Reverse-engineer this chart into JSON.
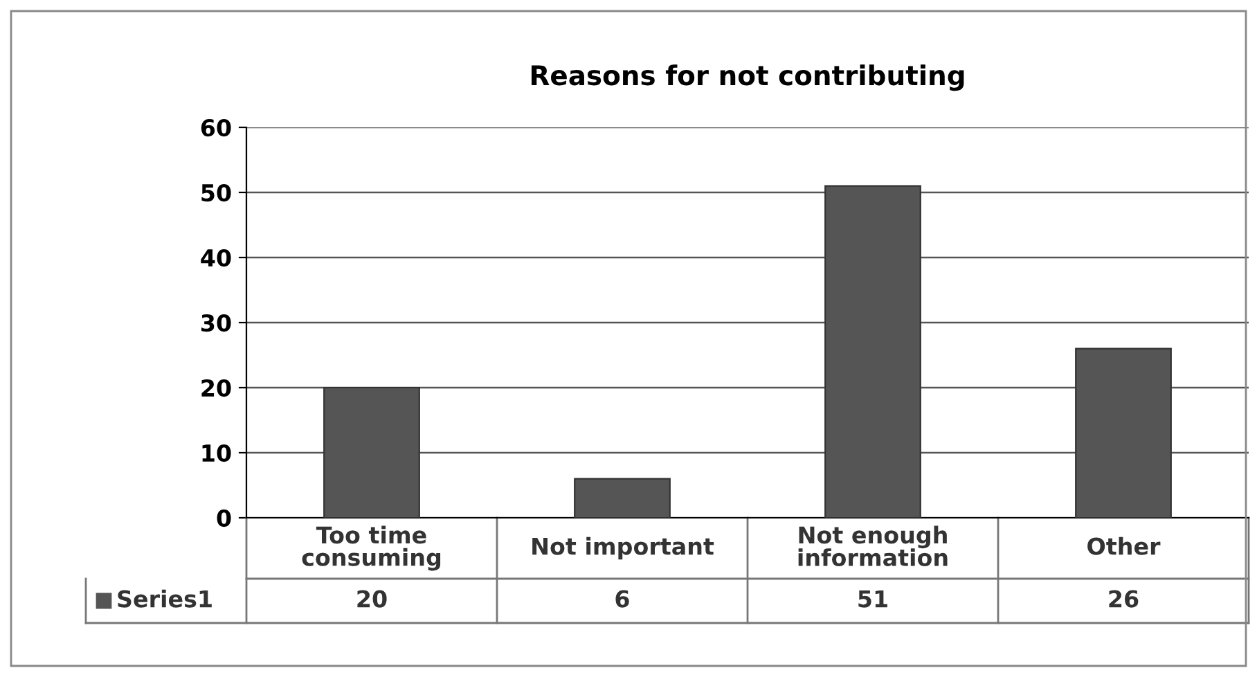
{
  "chart_data": {
    "type": "bar",
    "title": "Reasons for not contributing",
    "categories": [
      "Too time consuming",
      "Not important",
      "Not enough information",
      "Other"
    ],
    "series": [
      {
        "name": "Series1",
        "color": "#555555",
        "values": [
          20,
          6,
          51,
          26
        ]
      }
    ],
    "ylim": [
      0,
      60
    ],
    "yticks": [
      0,
      10,
      20,
      30,
      40,
      50,
      60
    ],
    "grid": "y",
    "legend": "bottom",
    "data_labels": true
  }
}
